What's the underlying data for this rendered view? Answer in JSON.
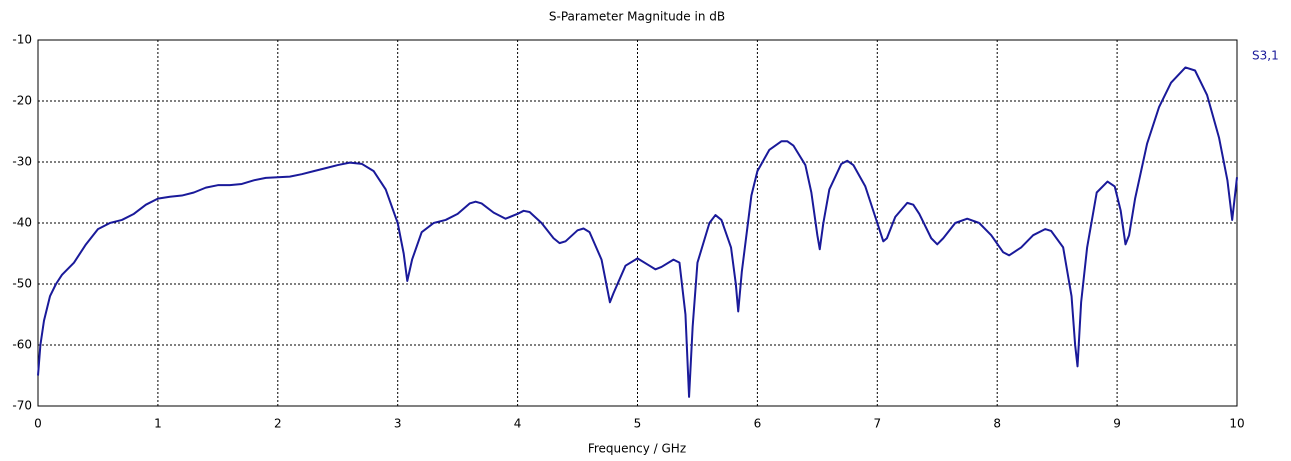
{
  "chart_data": {
    "type": "line",
    "title": "S-Parameter Magnitude in dB",
    "xlabel": "Frequency / GHz",
    "xlim": [
      0,
      10
    ],
    "xticks": [
      0,
      1,
      2,
      3,
      4,
      5,
      6,
      7,
      8,
      9,
      10
    ],
    "ylim": [
      -70,
      -10
    ],
    "yticks": [
      -70,
      -60,
      -50,
      -40,
      -30,
      -20,
      -10
    ],
    "grid": true,
    "series": [
      {
        "name": "S3,1",
        "color": "#1a1a9a",
        "x": [
          0,
          0.02,
          0.05,
          0.1,
          0.15,
          0.2,
          0.3,
          0.4,
          0.5,
          0.6,
          0.7,
          0.8,
          0.9,
          1.0,
          1.1,
          1.2,
          1.3,
          1.4,
          1.5,
          1.6,
          1.7,
          1.8,
          1.9,
          2.0,
          2.1,
          2.2,
          2.3,
          2.4,
          2.5,
          2.6,
          2.7,
          2.8,
          2.9,
          3.0,
          3.05,
          3.08,
          3.12,
          3.2,
          3.3,
          3.4,
          3.5,
          3.6,
          3.65,
          3.7,
          3.8,
          3.9,
          4.0,
          4.05,
          4.1,
          4.2,
          4.3,
          4.35,
          4.4,
          4.5,
          4.55,
          4.6,
          4.7,
          4.75,
          4.77,
          4.8,
          4.9,
          5.0,
          5.1,
          5.15,
          5.2,
          5.3,
          5.35,
          5.4,
          5.43,
          5.46,
          5.5,
          5.6,
          5.65,
          5.7,
          5.78,
          5.82,
          5.84,
          5.87,
          5.95,
          6.0,
          6.1,
          6.2,
          6.25,
          6.3,
          6.4,
          6.45,
          6.5,
          6.52,
          6.55,
          6.6,
          6.7,
          6.75,
          6.8,
          6.9,
          7.0,
          7.05,
          7.08,
          7.15,
          7.25,
          7.3,
          7.35,
          7.45,
          7.5,
          7.55,
          7.65,
          7.75,
          7.85,
          7.95,
          8.05,
          8.1,
          8.2,
          8.3,
          8.4,
          8.45,
          8.55,
          8.62,
          8.65,
          8.67,
          8.7,
          8.75,
          8.83,
          8.92,
          8.98,
          9.03,
          9.07,
          9.1,
          9.15,
          9.25,
          9.35,
          9.45,
          9.57,
          9.65,
          9.75,
          9.85,
          9.92,
          9.96,
          10.0
        ],
        "values": [
          -65,
          -60,
          -56,
          -52,
          -50,
          -48.5,
          -46.5,
          -43.5,
          -41,
          -40,
          -39.5,
          -38.5,
          -37,
          -36,
          -35.7,
          -35.5,
          -35,
          -34.2,
          -33.8,
          -33.8,
          -33.6,
          -33,
          -32.6,
          -32.5,
          -32.4,
          -32,
          -31.5,
          -31,
          -30.5,
          -30.1,
          -30.3,
          -31.5,
          -34.5,
          -40,
          -45,
          -49.5,
          -46,
          -41.5,
          -40,
          -39.5,
          -38.5,
          -36.8,
          -36.5,
          -36.8,
          -38.3,
          -39.3,
          -38.5,
          -38,
          -38.2,
          -40,
          -42.5,
          -43.3,
          -43,
          -41.2,
          -40.9,
          -41.5,
          -46,
          -51,
          -53,
          -51.5,
          -47,
          -45.8,
          -47,
          -47.6,
          -47.2,
          -46,
          -46.5,
          -55,
          -68.5,
          -57,
          -46.5,
          -40,
          -38.7,
          -39.5,
          -44,
          -50,
          -54.5,
          -48,
          -35.5,
          -31.5,
          -28,
          -26.6,
          -26.6,
          -27.3,
          -30.5,
          -35,
          -42,
          -44.3,
          -40,
          -34.5,
          -30.3,
          -29.8,
          -30.5,
          -34,
          -40,
          -43,
          -42.5,
          -39,
          -36.7,
          -37,
          -38.5,
          -42.5,
          -43.5,
          -42.5,
          -40,
          -39.3,
          -40,
          -42,
          -44.8,
          -45.3,
          -44,
          -42,
          -41,
          -41.3,
          -44,
          -52,
          -60,
          -63.5,
          -53,
          -44,
          -35,
          -33.2,
          -34,
          -38,
          -43.5,
          -42,
          -36,
          -27,
          -21,
          -17,
          -14.5,
          -15,
          -19,
          -26,
          -33,
          -39.5,
          -32.5
        ]
      }
    ]
  }
}
